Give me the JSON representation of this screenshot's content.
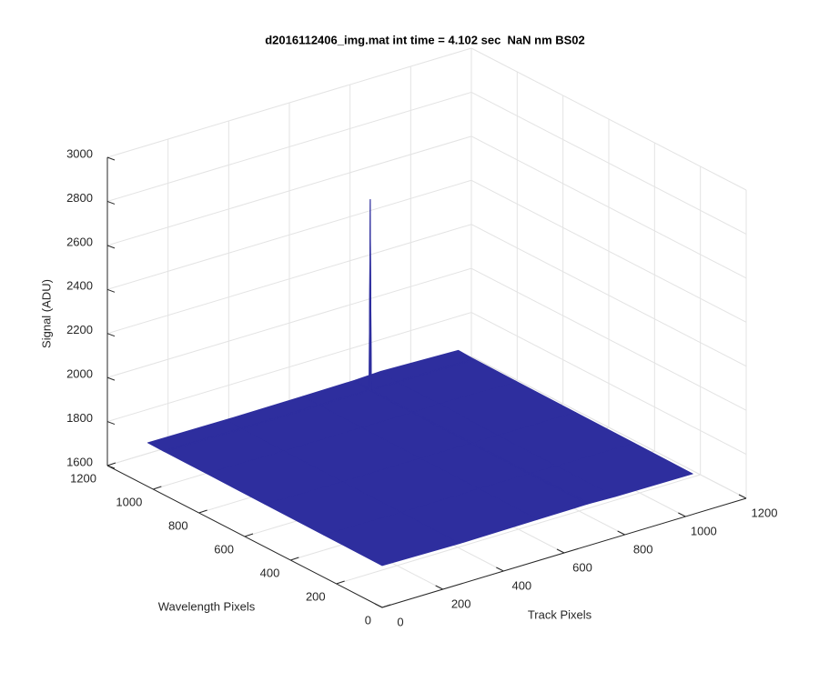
{
  "chart_data": {
    "type": "surface",
    "title": "d2016112406_img.mat int time = 4.102 sec  NaN nm BS02",
    "xlabel": "Track Pixels",
    "ylabel": "Wavelength Pixels",
    "zlabel": "Signal (ADU)",
    "x": [
      0,
      256,
      512,
      676,
      680,
      684,
      768,
      1024
    ],
    "y": [
      0,
      256,
      512,
      768,
      949,
      953,
      957,
      1024
    ],
    "z": [
      [
        1790,
        1785,
        1788,
        1790,
        1790,
        1790,
        1786,
        1784
      ],
      [
        1792,
        1788,
        1790,
        1789,
        1789,
        1789,
        1787,
        1786
      ],
      [
        1794,
        1790,
        1791,
        1790,
        1790,
        1790,
        1789,
        1788
      ],
      [
        1796,
        1792,
        1793,
        1792,
        1792,
        1792,
        1795,
        1790
      ],
      [
        1797,
        1794,
        1795,
        1794,
        1794,
        1794,
        1794,
        1792
      ],
      [
        1797,
        1794,
        1795,
        1794,
        2660,
        1794,
        1794,
        1792
      ],
      [
        1797,
        1794,
        1795,
        1794,
        1794,
        1794,
        1794,
        1792
      ],
      [
        1798,
        1796,
        1798,
        1800,
        1800,
        1800,
        1805,
        1795
      ]
    ],
    "color": "#2e2e9e",
    "xlim": [
      0,
      1200
    ],
    "xticks": [
      0,
      200,
      400,
      600,
      800,
      1000,
      1200
    ],
    "ylim": [
      0,
      1200
    ],
    "yticks": [
      0,
      200,
      400,
      600,
      800,
      1000,
      1200
    ],
    "zlim": [
      1600,
      3000
    ],
    "zticks": [
      1600,
      1800,
      2000,
      2200,
      2400,
      2600,
      2800,
      3000
    ],
    "grid": true
  }
}
